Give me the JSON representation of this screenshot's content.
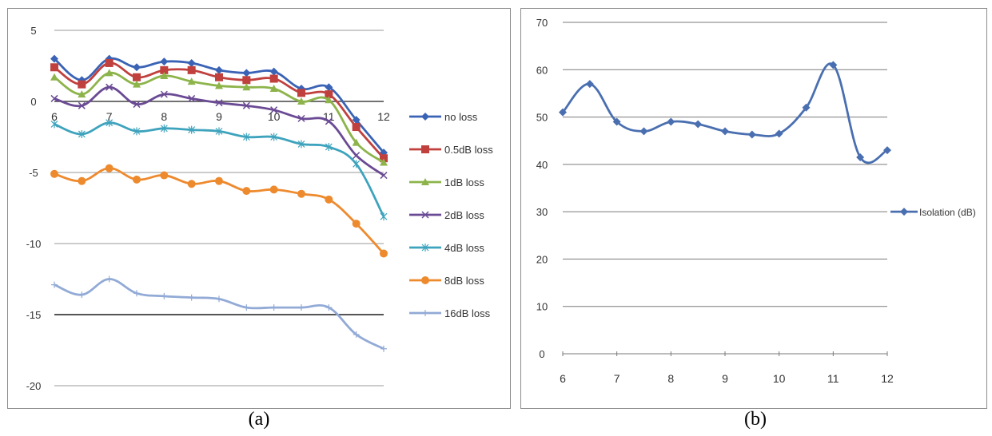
{
  "captions": {
    "a": "(a)",
    "b": "(b)"
  },
  "chart_data": [
    {
      "type": "line",
      "panel": "a",
      "title": "",
      "xlabel": "",
      "ylabel": "",
      "xlim": [
        6,
        12
      ],
      "ylim": [
        -20,
        5
      ],
      "yticks": [
        5,
        0,
        -5,
        -10,
        -15,
        -20
      ],
      "xticks": [
        6,
        7,
        8,
        9,
        10,
        11,
        12
      ],
      "grid": "horizontal",
      "legend": "right",
      "x": [
        6,
        6.5,
        7,
        7.5,
        8,
        8.5,
        9,
        9.5,
        10,
        10.5,
        11,
        11.5,
        12
      ],
      "series": [
        {
          "name": "no loss",
          "color": "#3a63b5",
          "marker": "diamond",
          "values": [
            3.0,
            1.5,
            3.0,
            2.4,
            2.8,
            2.7,
            2.2,
            2.0,
            2.1,
            0.9,
            1.0,
            -1.3,
            -3.6
          ]
        },
        {
          "name": "0.5dB loss",
          "color": "#c0403e",
          "marker": "square",
          "values": [
            2.4,
            1.2,
            2.7,
            1.7,
            2.2,
            2.2,
            1.7,
            1.5,
            1.6,
            0.6,
            0.5,
            -1.8,
            -4.0
          ]
        },
        {
          "name": "1dB loss",
          "color": "#8db44a",
          "marker": "triangle",
          "values": [
            1.7,
            0.5,
            2.0,
            1.2,
            1.8,
            1.4,
            1.1,
            1.0,
            0.9,
            0.0,
            0.1,
            -2.9,
            -4.3
          ]
        },
        {
          "name": "2dB loss",
          "color": "#6a4a94",
          "marker": "x",
          "values": [
            0.2,
            -0.3,
            1.0,
            -0.2,
            0.5,
            0.2,
            -0.1,
            -0.3,
            -0.6,
            -1.2,
            -1.4,
            -3.8,
            -5.2
          ]
        },
        {
          "name": "4dB loss",
          "color": "#3ea3bd",
          "marker": "star",
          "values": [
            -1.6,
            -2.3,
            -1.5,
            -2.1,
            -1.9,
            -2.0,
            -2.1,
            -2.5,
            -2.5,
            -3.0,
            -3.2,
            -4.4,
            -8.1
          ]
        },
        {
          "name": "8dB loss",
          "color": "#ee8a2e",
          "marker": "circle",
          "values": [
            -5.1,
            -5.6,
            -4.7,
            -5.5,
            -5.2,
            -5.8,
            -5.6,
            -6.3,
            -6.2,
            -6.5,
            -6.9,
            -8.6,
            -10.7
          ]
        },
        {
          "name": "16dB loss",
          "color": "#92aad6",
          "marker": "plus",
          "values": [
            -12.9,
            -13.6,
            -12.5,
            -13.5,
            -13.7,
            -13.8,
            -13.9,
            -14.5,
            -14.5,
            -14.5,
            -14.5,
            -16.4,
            -17.4
          ]
        }
      ]
    },
    {
      "type": "line",
      "panel": "b",
      "title": "",
      "xlabel": "",
      "ylabel": "",
      "xlim": [
        6,
        12
      ],
      "ylim": [
        0,
        70
      ],
      "yticks": [
        70,
        60,
        50,
        40,
        30,
        20,
        10,
        0
      ],
      "xticks": [
        6,
        7,
        8,
        9,
        10,
        11,
        12
      ],
      "grid": "horizontal",
      "legend": "right",
      "x": [
        6,
        6.5,
        7,
        7.5,
        8,
        8.5,
        9,
        9.5,
        10,
        10.5,
        11,
        11.5,
        12
      ],
      "series": [
        {
          "name": "Isolation (dB)",
          "color": "#4a6fb0",
          "marker": "diamond",
          "values": [
            51,
            57,
            49,
            47,
            49,
            48.5,
            47,
            46.3,
            46.5,
            52,
            61,
            41.5,
            43
          ]
        }
      ]
    }
  ]
}
